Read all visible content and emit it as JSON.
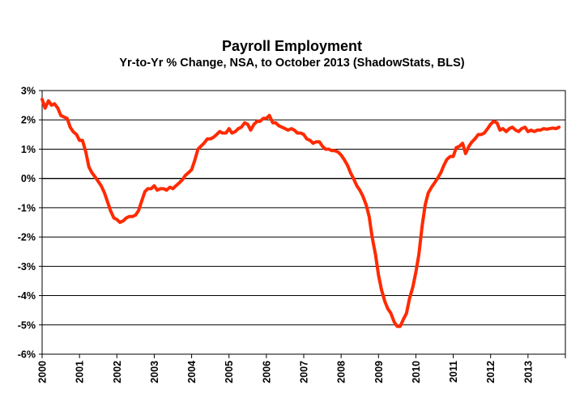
{
  "chart_data": {
    "type": "line",
    "title": "Payroll Employment",
    "subtitle": "Yr-to-Yr % Change, NSA, to October 2013 (ShadowStats, BLS)",
    "xlabel": "",
    "ylabel": "",
    "ylim": [
      -6,
      3
    ],
    "y_ticks": [
      {
        "value": 3,
        "label": "3%"
      },
      {
        "value": 2,
        "label": "2%"
      },
      {
        "value": 1,
        "label": "1%"
      },
      {
        "value": 0,
        "label": "0%"
      },
      {
        "value": -1,
        "label": "-1%"
      },
      {
        "value": -2,
        "label": "-2%"
      },
      {
        "value": -3,
        "label": "-3%"
      },
      {
        "value": -4,
        "label": "-4%"
      },
      {
        "value": -5,
        "label": "-5%"
      },
      {
        "value": -6,
        "label": "-6%"
      }
    ],
    "x_ticks": [
      "2000",
      "2001",
      "2002",
      "2003",
      "2004",
      "2005",
      "2006",
      "2007",
      "2008",
      "2009",
      "2010",
      "2011",
      "2012",
      "2013"
    ],
    "xlim": [
      2000,
      2014
    ],
    "grid": true,
    "legend": "none",
    "line_color": "#ff2a00",
    "series": [
      {
        "values": [
          [
            2000.0,
            2.7
          ],
          [
            2000.08,
            2.4
          ],
          [
            2000.17,
            2.65
          ],
          [
            2000.25,
            2.5
          ],
          [
            2000.33,
            2.55
          ],
          [
            2000.42,
            2.4
          ],
          [
            2000.5,
            2.15
          ],
          [
            2000.58,
            2.1
          ],
          [
            2000.67,
            2.05
          ],
          [
            2000.75,
            1.75
          ],
          [
            2000.83,
            1.6
          ],
          [
            2000.92,
            1.5
          ],
          [
            2001.0,
            1.3
          ],
          [
            2001.08,
            1.3
          ],
          [
            2001.17,
            0.9
          ],
          [
            2001.25,
            0.4
          ],
          [
            2001.33,
            0.2
          ],
          [
            2001.42,
            0.05
          ],
          [
            2001.5,
            -0.1
          ],
          [
            2001.58,
            -0.25
          ],
          [
            2001.67,
            -0.5
          ],
          [
            2001.75,
            -0.8
          ],
          [
            2001.83,
            -1.1
          ],
          [
            2001.92,
            -1.35
          ],
          [
            2002.0,
            -1.4
          ],
          [
            2002.08,
            -1.5
          ],
          [
            2002.17,
            -1.45
          ],
          [
            2002.25,
            -1.35
          ],
          [
            2002.33,
            -1.3
          ],
          [
            2002.42,
            -1.3
          ],
          [
            2002.5,
            -1.25
          ],
          [
            2002.58,
            -1.1
          ],
          [
            2002.67,
            -0.75
          ],
          [
            2002.75,
            -0.45
          ],
          [
            2002.83,
            -0.35
          ],
          [
            2002.92,
            -0.35
          ],
          [
            2003.0,
            -0.25
          ],
          [
            2003.08,
            -0.4
          ],
          [
            2003.17,
            -0.35
          ],
          [
            2003.25,
            -0.35
          ],
          [
            2003.33,
            -0.4
          ],
          [
            2003.42,
            -0.3
          ],
          [
            2003.5,
            -0.35
          ],
          [
            2003.58,
            -0.25
          ],
          [
            2003.67,
            -0.15
          ],
          [
            2003.75,
            -0.05
          ],
          [
            2003.83,
            0.1
          ],
          [
            2003.92,
            0.2
          ],
          [
            2004.0,
            0.3
          ],
          [
            2004.08,
            0.6
          ],
          [
            2004.17,
            1.0
          ],
          [
            2004.25,
            1.1
          ],
          [
            2004.33,
            1.2
          ],
          [
            2004.42,
            1.35
          ],
          [
            2004.5,
            1.35
          ],
          [
            2004.58,
            1.4
          ],
          [
            2004.67,
            1.5
          ],
          [
            2004.75,
            1.6
          ],
          [
            2004.83,
            1.55
          ],
          [
            2004.92,
            1.55
          ],
          [
            2005.0,
            1.7
          ],
          [
            2005.08,
            1.55
          ],
          [
            2005.17,
            1.6
          ],
          [
            2005.25,
            1.7
          ],
          [
            2005.33,
            1.75
          ],
          [
            2005.42,
            1.9
          ],
          [
            2005.5,
            1.85
          ],
          [
            2005.58,
            1.65
          ],
          [
            2005.67,
            1.85
          ],
          [
            2005.75,
            1.95
          ],
          [
            2005.83,
            1.95
          ],
          [
            2005.92,
            2.05
          ],
          [
            2006.0,
            2.05
          ],
          [
            2006.08,
            2.15
          ],
          [
            2006.17,
            1.9
          ],
          [
            2006.25,
            1.9
          ],
          [
            2006.33,
            1.8
          ],
          [
            2006.42,
            1.75
          ],
          [
            2006.5,
            1.7
          ],
          [
            2006.58,
            1.65
          ],
          [
            2006.67,
            1.7
          ],
          [
            2006.75,
            1.65
          ],
          [
            2006.83,
            1.55
          ],
          [
            2006.92,
            1.55
          ],
          [
            2007.0,
            1.5
          ],
          [
            2007.08,
            1.35
          ],
          [
            2007.17,
            1.3
          ],
          [
            2007.25,
            1.2
          ],
          [
            2007.33,
            1.25
          ],
          [
            2007.42,
            1.25
          ],
          [
            2007.5,
            1.1
          ],
          [
            2007.58,
            1.0
          ],
          [
            2007.67,
            1.0
          ],
          [
            2007.75,
            0.95
          ],
          [
            2007.83,
            0.95
          ],
          [
            2007.92,
            0.9
          ],
          [
            2008.0,
            0.8
          ],
          [
            2008.08,
            0.65
          ],
          [
            2008.17,
            0.45
          ],
          [
            2008.25,
            0.2
          ],
          [
            2008.33,
            0.0
          ],
          [
            2008.42,
            -0.25
          ],
          [
            2008.5,
            -0.4
          ],
          [
            2008.58,
            -0.6
          ],
          [
            2008.67,
            -0.9
          ],
          [
            2008.75,
            -1.3
          ],
          [
            2008.83,
            -2.0
          ],
          [
            2008.92,
            -2.6
          ],
          [
            2009.0,
            -3.3
          ],
          [
            2009.08,
            -3.8
          ],
          [
            2009.17,
            -4.2
          ],
          [
            2009.25,
            -4.45
          ],
          [
            2009.33,
            -4.6
          ],
          [
            2009.42,
            -4.9
          ],
          [
            2009.5,
            -5.05
          ],
          [
            2009.58,
            -5.05
          ],
          [
            2009.67,
            -4.8
          ],
          [
            2009.75,
            -4.6
          ],
          [
            2009.83,
            -4.1
          ],
          [
            2009.92,
            -3.7
          ],
          [
            2010.0,
            -3.2
          ],
          [
            2010.08,
            -2.6
          ],
          [
            2010.17,
            -1.6
          ],
          [
            2010.25,
            -0.9
          ],
          [
            2010.33,
            -0.5
          ],
          [
            2010.42,
            -0.3
          ],
          [
            2010.5,
            -0.15
          ],
          [
            2010.58,
            0.0
          ],
          [
            2010.67,
            0.2
          ],
          [
            2010.75,
            0.45
          ],
          [
            2010.83,
            0.65
          ],
          [
            2010.92,
            0.75
          ],
          [
            2011.0,
            0.75
          ],
          [
            2011.08,
            1.05
          ],
          [
            2011.17,
            1.1
          ],
          [
            2011.25,
            1.2
          ],
          [
            2011.33,
            0.85
          ],
          [
            2011.42,
            1.1
          ],
          [
            2011.5,
            1.25
          ],
          [
            2011.58,
            1.35
          ],
          [
            2011.67,
            1.5
          ],
          [
            2011.75,
            1.5
          ],
          [
            2011.83,
            1.55
          ],
          [
            2011.92,
            1.7
          ],
          [
            2012.0,
            1.85
          ],
          [
            2012.08,
            1.95
          ],
          [
            2012.17,
            1.9
          ],
          [
            2012.25,
            1.65
          ],
          [
            2012.33,
            1.7
          ],
          [
            2012.42,
            1.6
          ],
          [
            2012.5,
            1.7
          ],
          [
            2012.58,
            1.75
          ],
          [
            2012.67,
            1.65
          ],
          [
            2012.75,
            1.6
          ],
          [
            2012.83,
            1.7
          ],
          [
            2012.92,
            1.75
          ],
          [
            2013.0,
            1.6
          ],
          [
            2013.08,
            1.65
          ],
          [
            2013.17,
            1.6
          ],
          [
            2013.25,
            1.65
          ],
          [
            2013.33,
            1.65
          ],
          [
            2013.42,
            1.7
          ],
          [
            2013.5,
            1.68
          ],
          [
            2013.58,
            1.7
          ],
          [
            2013.67,
            1.72
          ],
          [
            2013.75,
            1.7
          ],
          [
            2013.83,
            1.75
          ]
        ]
      }
    ]
  }
}
